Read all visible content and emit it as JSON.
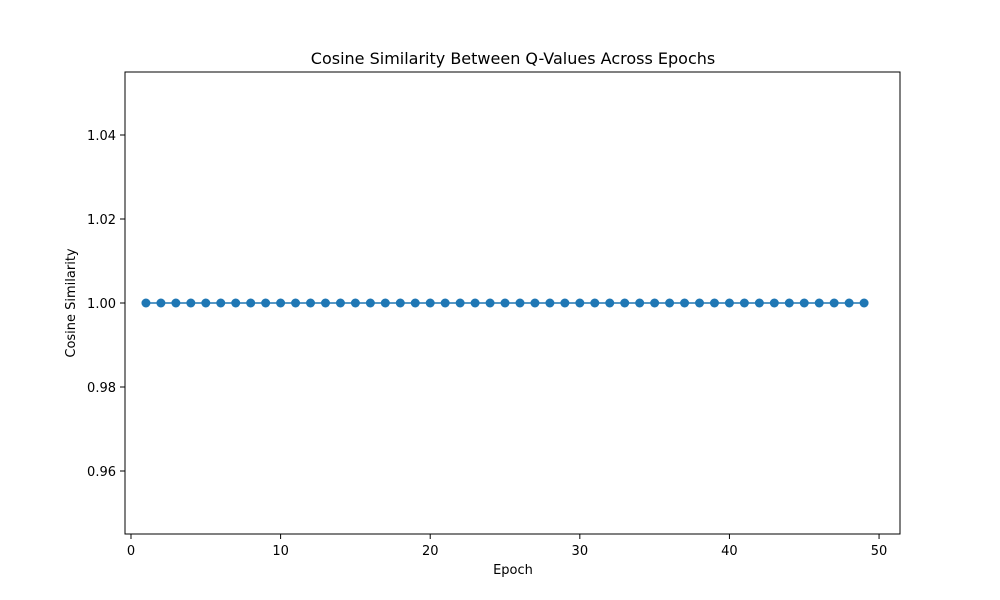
{
  "chart_data": {
    "type": "line",
    "title": "Cosine Similarity Between Q-Values Across Epochs",
    "xlabel": "Epoch",
    "ylabel": "Cosine Similarity",
    "x": [
      1,
      2,
      3,
      4,
      5,
      6,
      7,
      8,
      9,
      10,
      11,
      12,
      13,
      14,
      15,
      16,
      17,
      18,
      19,
      20,
      21,
      22,
      23,
      24,
      25,
      26,
      27,
      28,
      29,
      30,
      31,
      32,
      33,
      34,
      35,
      36,
      37,
      38,
      39,
      40,
      41,
      42,
      43,
      44,
      45,
      46,
      47,
      48,
      49
    ],
    "series": [
      {
        "color": "#1f77b4",
        "marker": "circle",
        "values": [
          1.0,
          1.0,
          1.0,
          1.0,
          1.0,
          1.0,
          1.0,
          1.0,
          1.0,
          1.0,
          1.0,
          1.0,
          1.0,
          1.0,
          1.0,
          1.0,
          1.0,
          1.0,
          1.0,
          1.0,
          1.0,
          1.0,
          1.0,
          1.0,
          1.0,
          1.0,
          1.0,
          1.0,
          1.0,
          1.0,
          1.0,
          1.0,
          1.0,
          1.0,
          1.0,
          1.0,
          1.0,
          1.0,
          1.0,
          1.0,
          1.0,
          1.0,
          1.0,
          1.0,
          1.0,
          1.0,
          1.0,
          1.0,
          1.0
        ]
      }
    ],
    "xlim": [
      -0.4,
      51.4
    ],
    "ylim": [
      0.945,
      1.055
    ],
    "xticks": [
      0,
      10,
      20,
      30,
      40,
      50
    ],
    "xtick_labels": [
      "0",
      "10",
      "20",
      "30",
      "40",
      "50"
    ],
    "yticks": [
      0.96,
      0.98,
      1.0,
      1.02,
      1.04
    ],
    "ytick_labels": [
      "0.96",
      "0.98",
      "1.00",
      "1.02",
      "1.04"
    ],
    "grid": false,
    "legend": false
  }
}
